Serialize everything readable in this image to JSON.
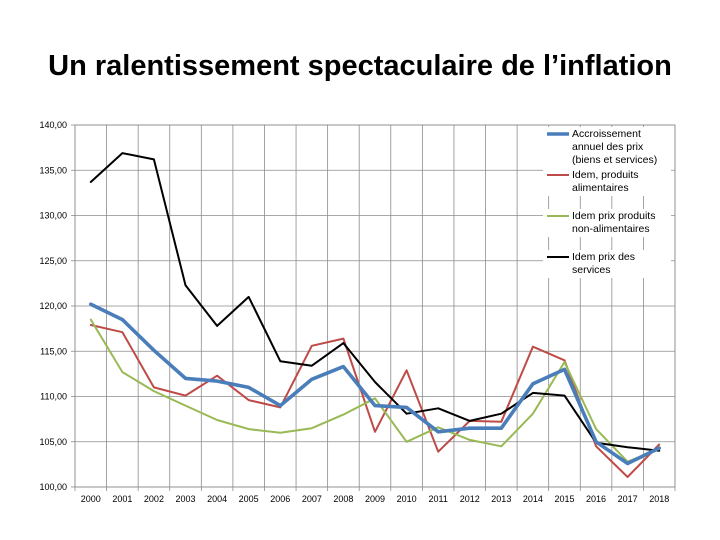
{
  "title": "Un ralentissement spectaculaire de l’inflation",
  "chart_data": {
    "type": "line",
    "x": [
      "2000",
      "2001",
      "2002",
      "2003",
      "2004",
      "2005",
      "2006",
      "2007",
      "2008",
      "2009",
      "2010",
      "2011",
      "2012",
      "2013",
      "2014",
      "2015",
      "2016",
      "2017",
      "2018"
    ],
    "ylim": [
      100,
      140
    ],
    "yticks": [
      "100,00",
      "105,00",
      "110,00",
      "115,00",
      "120,00",
      "125,00",
      "130,00",
      "135,00",
      "140,00"
    ],
    "grid": true,
    "legend_position": "top-right",
    "series": [
      {
        "name": "Accroissement annuel des prix (biens et services)",
        "legend_lines": [
          "Accroissement",
          "annuel des prix",
          "(biens et services)"
        ],
        "color": "#4a7ebb",
        "width": "thick",
        "values": [
          120.2,
          118.5,
          115.1,
          112.0,
          111.7,
          111.0,
          109.0,
          111.9,
          113.3,
          109.0,
          108.8,
          106.1,
          106.5,
          106.5,
          111.4,
          113.0,
          105.0,
          102.6,
          104.3
        ]
      },
      {
        "name": "Idem, produits alimentaires",
        "legend_lines": [
          "Idem, produits",
          "alimentaires"
        ],
        "color": "#be4b48",
        "width": "normal",
        "values": [
          117.9,
          117.1,
          111.0,
          110.1,
          112.3,
          109.6,
          108.8,
          115.6,
          116.4,
          106.1,
          112.9,
          103.9,
          107.3,
          107.2,
          115.5,
          114.0,
          104.5,
          101.1,
          104.7
        ]
      },
      {
        "name": "Idem prix produits non-alimentaires",
        "legend_lines": [
          "Idem prix produits",
          "non-alimentaires"
        ],
        "color": "#98b954",
        "width": "normal",
        "values": [
          118.5,
          112.7,
          110.6,
          109.0,
          107.4,
          106.4,
          106.0,
          106.5,
          108.0,
          109.8,
          105.0,
          106.6,
          105.2,
          104.5,
          108.1,
          113.8,
          106.4,
          102.8,
          104.2
        ]
      },
      {
        "name": "Idem prix des services",
        "legend_lines": [
          "Idem prix des",
          "services"
        ],
        "color": "#000000",
        "width": "normal",
        "values": [
          133.7,
          136.9,
          136.2,
          122.3,
          117.8,
          121.0,
          113.9,
          113.4,
          115.9,
          111.6,
          108.1,
          108.7,
          107.3,
          108.1,
          110.4,
          110.1,
          104.9,
          104.4,
          104.0
        ]
      }
    ]
  }
}
